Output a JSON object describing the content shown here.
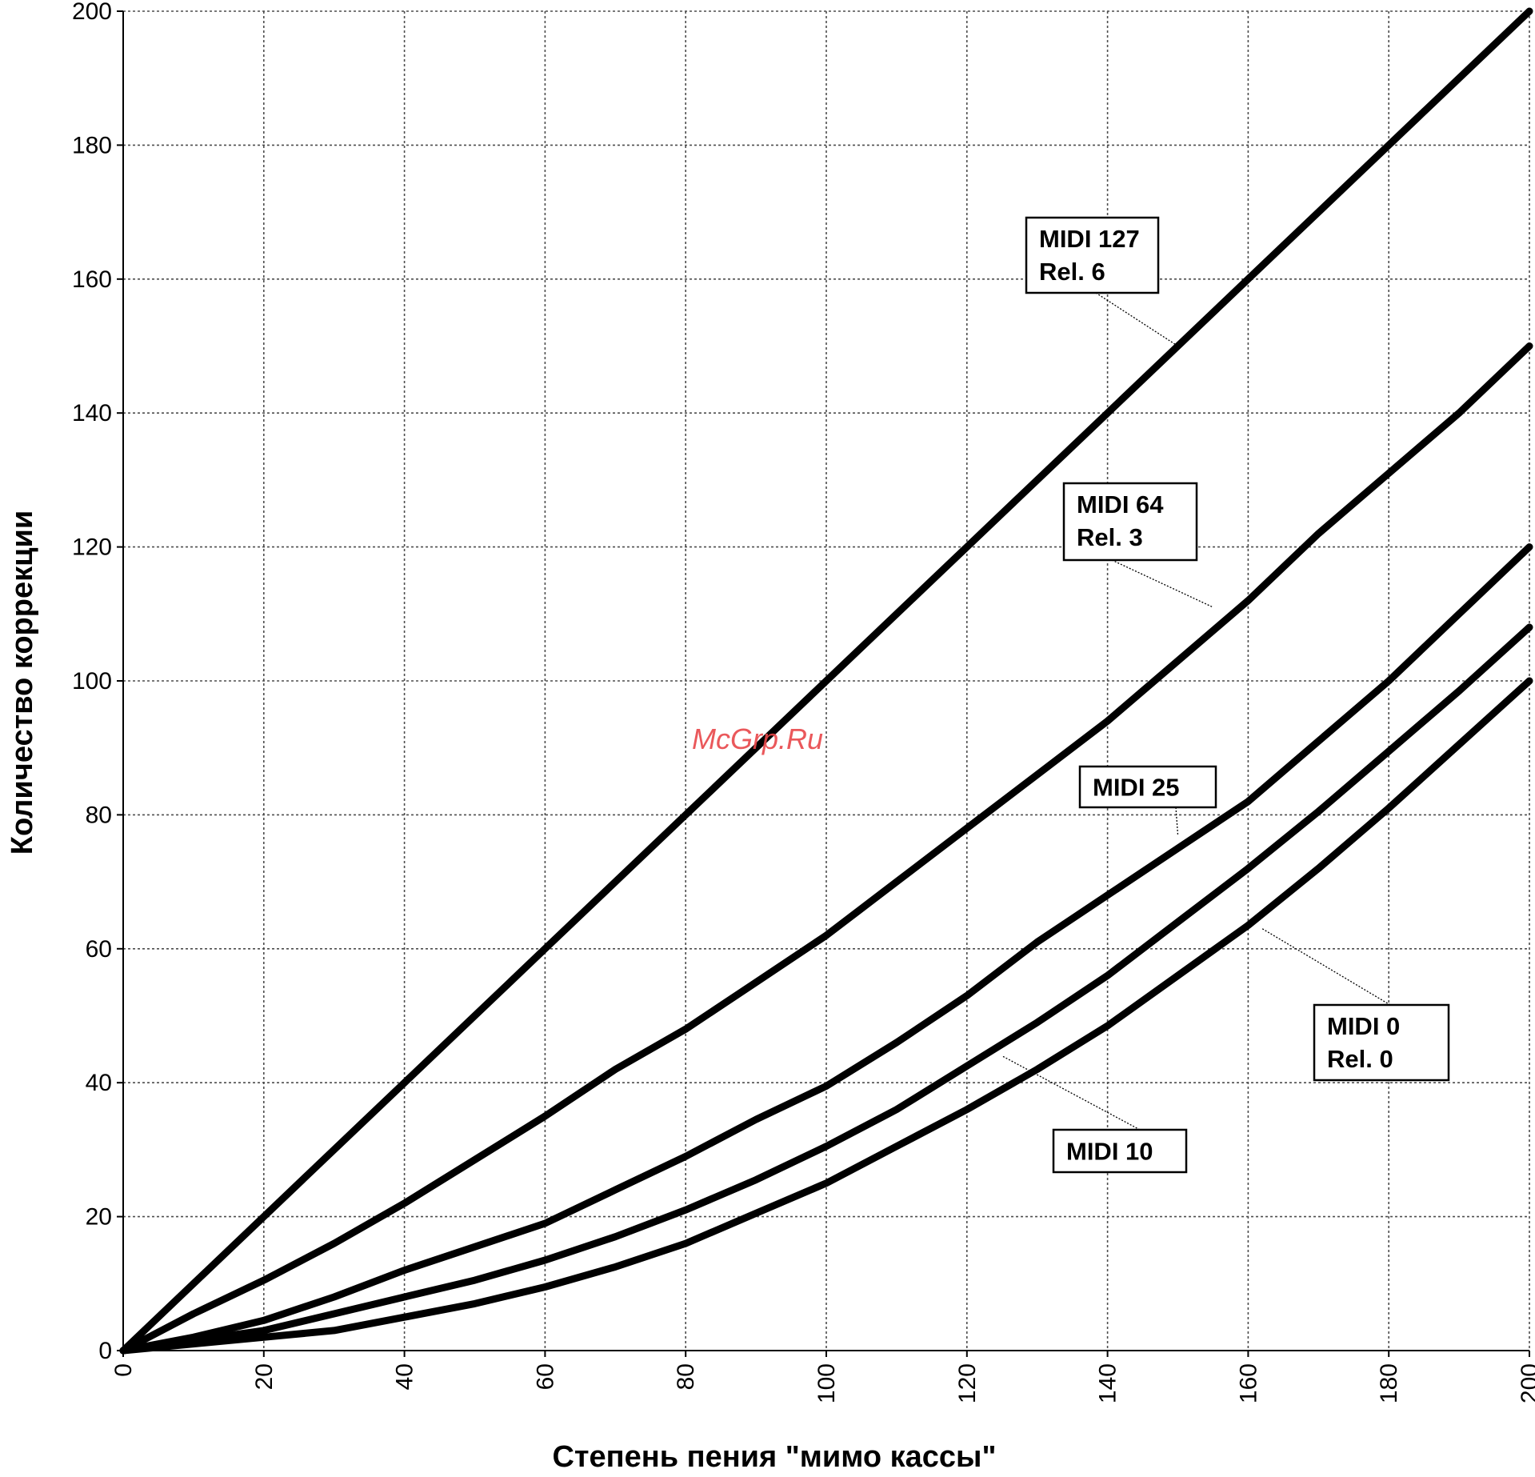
{
  "chart_data": {
    "type": "line",
    "title": "",
    "xlabel": "Степень пения \"мимо кассы\"",
    "ylabel": "Количество коррекции",
    "xlim": [
      0,
      200
    ],
    "ylim": [
      0,
      200
    ],
    "x_ticks": [
      "0",
      "20",
      "40",
      "60",
      "80",
      "100",
      "120",
      "140",
      "160",
      "180",
      "200"
    ],
    "y_ticks": [
      "0",
      "20",
      "40",
      "60",
      "80",
      "100",
      "120",
      "140",
      "160",
      "180",
      "200"
    ],
    "grid": true,
    "series": [
      {
        "name": "MIDI 127 Rel. 6",
        "label_lines": [
          "MIDI 127",
          "Rel. 6"
        ],
        "x": [
          0,
          20,
          40,
          60,
          80,
          100,
          120,
          140,
          160,
          180,
          200
        ],
        "y": [
          0,
          20,
          40,
          60,
          80,
          100,
          120,
          140,
          160,
          180,
          200
        ],
        "label_anchor": [
          150,
          150
        ]
      },
      {
        "name": "MIDI 64 Rel. 3",
        "label_lines": [
          "MIDI 64",
          "Rel. 3"
        ],
        "x": [
          0,
          10,
          20,
          30,
          40,
          50,
          60,
          70,
          80,
          90,
          100,
          110,
          120,
          130,
          140,
          150,
          160,
          170,
          180,
          190,
          200
        ],
        "y": [
          0,
          5.5,
          10.5,
          16,
          22,
          28.5,
          35,
          42,
          48,
          55,
          62,
          70,
          78,
          86,
          94,
          103,
          112,
          122,
          131,
          140,
          150
        ],
        "label_anchor": [
          155,
          111
        ]
      },
      {
        "name": "MIDI 25",
        "label_lines": [
          "MIDI 25"
        ],
        "x": [
          0,
          10,
          20,
          30,
          40,
          50,
          60,
          70,
          80,
          90,
          100,
          110,
          120,
          130,
          140,
          150,
          160,
          170,
          180,
          190,
          200
        ],
        "y": [
          0,
          2,
          4.5,
          8,
          12,
          15.5,
          19,
          24,
          29,
          34.5,
          39.5,
          46,
          53,
          61,
          68,
          75,
          82,
          91,
          100,
          110,
          120
        ],
        "label_anchor": [
          150,
          77
        ]
      },
      {
        "name": "MIDI 10",
        "label_lines": [
          "MIDI 10"
        ],
        "x": [
          0,
          10,
          20,
          30,
          40,
          50,
          60,
          70,
          80,
          90,
          100,
          110,
          120,
          130,
          140,
          150,
          160,
          170,
          180,
          190,
          200
        ],
        "y": [
          0,
          1.5,
          3,
          5.5,
          8,
          10.5,
          13.5,
          17,
          21,
          25.5,
          30.5,
          36,
          42.5,
          49,
          56,
          64,
          72,
          80.5,
          89.5,
          98.5,
          108
        ],
        "label_anchor": [
          125,
          44
        ]
      },
      {
        "name": "MIDI 0 Rel. 0",
        "label_lines": [
          "MIDI 0",
          "Rel. 0"
        ],
        "x": [
          0,
          10,
          20,
          30,
          40,
          50,
          60,
          70,
          80,
          90,
          100,
          110,
          120,
          130,
          140,
          150,
          160,
          170,
          180,
          190,
          200
        ],
        "y": [
          0,
          1,
          2,
          3,
          5,
          7,
          9.5,
          12.5,
          16,
          20.5,
          25,
          30.5,
          36,
          42,
          48.5,
          56,
          63.5,
          72,
          81,
          90.5,
          100
        ],
        "label_anchor": [
          162,
          63
        ]
      }
    ],
    "watermark": "McGrp.Ru"
  }
}
